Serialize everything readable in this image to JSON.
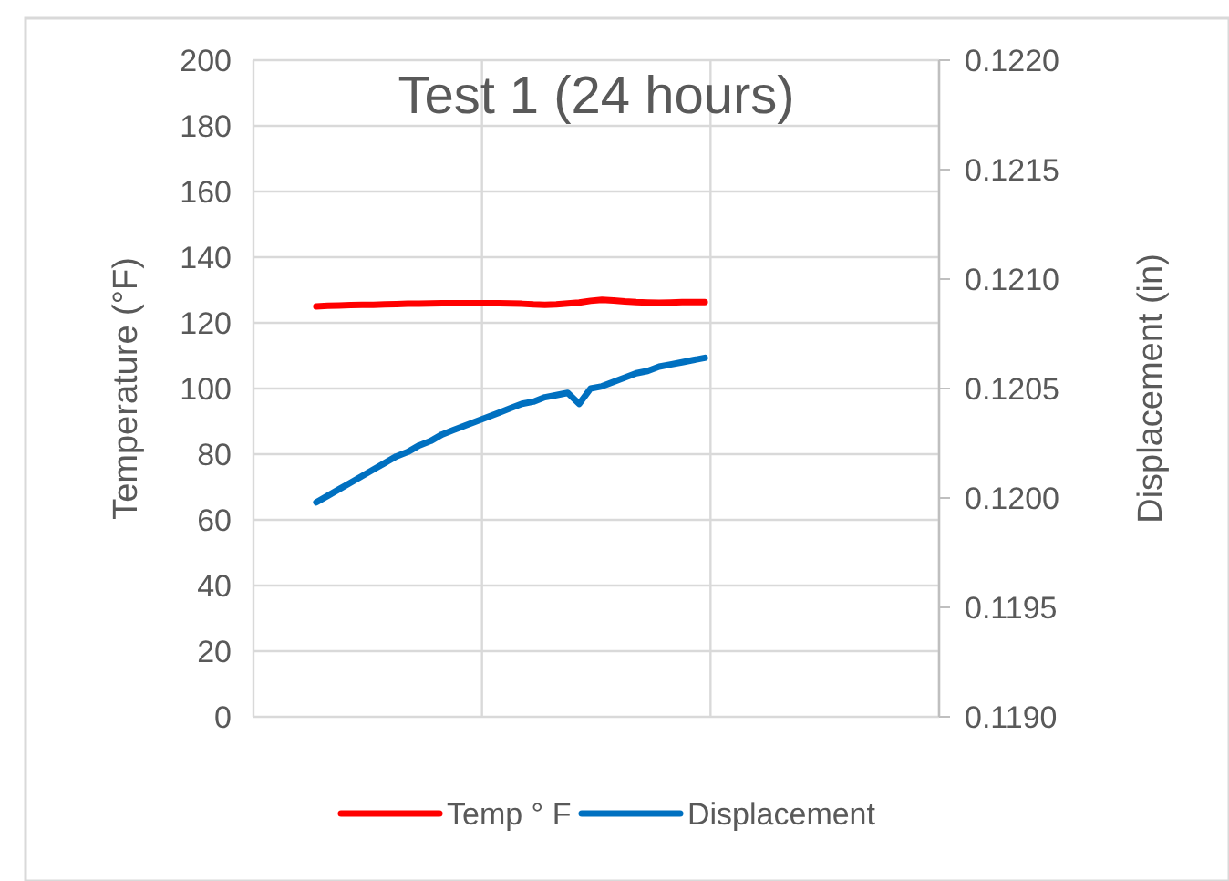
{
  "chart_data": {
    "type": "line",
    "title": "Test 1 (24 hours)",
    "ylabel": "Temperature (°F)",
    "y2label": "Displacement (in)",
    "categories": [
      null,
      null,
      null,
      null,
      null,
      null,
      null,
      null,
      null,
      null,
      null,
      null,
      null,
      null,
      null,
      null,
      null,
      null,
      null,
      null,
      null,
      null,
      null,
      null,
      null,
      null,
      null,
      null,
      null,
      null,
      null,
      null,
      null,
      null,
      null,
      null,
      null,
      null,
      null,
      null,
      null,
      null,
      null,
      null,
      null,
      null,
      null,
      null,
      null,
      null,
      null,
      null,
      null,
      null,
      null,
      null,
      null,
      null,
      null,
      null
    ],
    "series": [
      {
        "name": "Temp ° F",
        "color": "#ff0000",
        "values": [
          null,
          null,
          null,
          null,
          null,
          125,
          125.2,
          125.3,
          125.4,
          125.5,
          125.5,
          125.6,
          125.7,
          125.8,
          125.8,
          125.9,
          126,
          126,
          126,
          126,
          126,
          126,
          125.9,
          125.8,
          125.6,
          125.5,
          125.6,
          125.9,
          126.2,
          126.7,
          127,
          126.8,
          126.5,
          126.3,
          126.2,
          126.1,
          126.2,
          126.3,
          126.3,
          126.3,
          null,
          null,
          null,
          null,
          null,
          null,
          null,
          null,
          null,
          null,
          null,
          null,
          null,
          null,
          null,
          null,
          null,
          null,
          null,
          null
        ]
      },
      {
        "name": "Displacement",
        "color": "#0070c0",
        "axis": "y2",
        "values": [
          null,
          null,
          null,
          null,
          null,
          0.11998,
          0.12001,
          0.12004,
          0.12007,
          0.1201,
          0.12013,
          0.12016,
          0.12019,
          0.12021,
          0.12024,
          0.12026,
          0.12029,
          0.12031,
          0.12033,
          0.12035,
          0.12037,
          0.12039,
          0.12041,
          0.12043,
          0.12044,
          0.12046,
          0.12047,
          0.12048,
          0.12043,
          0.1205,
          0.12051,
          0.12053,
          0.12055,
          0.12057,
          0.12058,
          0.1206,
          0.12061,
          0.12062,
          0.12063,
          0.12064,
          null,
          null,
          null,
          null,
          null,
          null,
          null,
          null,
          null,
          null,
          null,
          null,
          null,
          null,
          null,
          null,
          null,
          null,
          null,
          null
        ]
      }
    ],
    "ylim": [
      0,
      200
    ],
    "yticks": [
      0,
      20,
      40,
      60,
      80,
      100,
      120,
      140,
      160,
      180,
      200
    ],
    "y2lim": [
      0.119,
      0.122
    ],
    "y2ticks": [
      {
        "value": 0.119,
        "label": "0.1190"
      },
      {
        "value": 0.1195,
        "label": "0.1195"
      },
      {
        "value": 0.12,
        "label": "0.1200"
      },
      {
        "value": 0.1205,
        "label": "0.1205"
      },
      {
        "value": 0.121,
        "label": "0.1210"
      },
      {
        "value": 0.1215,
        "label": "0.1215"
      },
      {
        "value": 0.122,
        "label": "0.1220"
      }
    ],
    "grid": true,
    "legend": "bottom",
    "marker": "none",
    "line_style": "solid"
  }
}
